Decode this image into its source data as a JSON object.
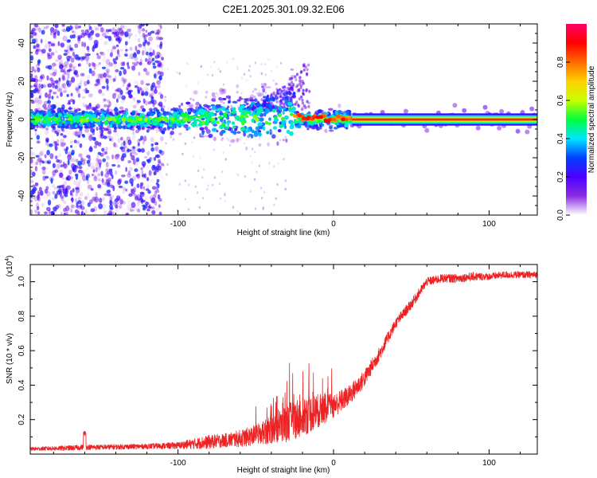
{
  "title": "C2E1.2025.301.09.32.E06",
  "chart_data": [
    {
      "type": "heatmap",
      "title": "C2E1.2025.301.09.32.E06",
      "xlabel": "Height of straight line (km)",
      "ylabel": "Frequency (Hz)",
      "xlim": [
        -195,
        131
      ],
      "ylim": [
        -50,
        50
      ],
      "xticks": [
        -100,
        0,
        100
      ],
      "xtick_labels": [
        "-100",
        "0",
        "100"
      ],
      "yticks": [
        -40,
        -20,
        0,
        20,
        40
      ],
      "ytick_labels": [
        "-40",
        "-20",
        "0",
        "20",
        "40"
      ],
      "colorbar": {
        "label": "Normalized spectral amplitude",
        "range": [
          0,
          1
        ],
        "ticks": [
          0.0,
          0.2,
          0.4,
          0.6,
          0.8
        ],
        "tick_labels": [
          "0.0",
          "0.2",
          "0.4",
          "0.6",
          "0.8"
        ],
        "colors": [
          "#ffffff",
          "#8a2be2",
          "#4b00ff",
          "#0040ff",
          "#00e5ff",
          "#00ff3c",
          "#c8ff00",
          "#ffd000",
          "#ff6a00",
          "#ff0000",
          "#ff0066"
        ]
      },
      "features": {
        "carrier_line_hz": 0,
        "stable_carrier_from_km": 12,
        "noise_region_km": [
          -195,
          -110
        ],
        "widening_region_km": [
          -110,
          -25
        ],
        "upper_flare_max_hz": 33
      }
    },
    {
      "type": "line",
      "xlabel": "Height of straight line (km)",
      "ylabel": "SNR (10 * v/v)",
      "y_scale_label": "(x10",
      "y_scale_exponent": "4",
      "xlim": [
        -195,
        131
      ],
      "ylim": [
        0,
        1.1
      ],
      "xticks": [
        -100,
        0,
        100
      ],
      "xtick_labels": [
        "-100",
        "0",
        "100"
      ],
      "yticks": [
        0.2,
        0.4,
        0.6,
        0.8,
        1.0
      ],
      "ytick_labels": [
        "0.2",
        "0.4",
        "0.6",
        "0.8",
        "1.0"
      ],
      "series": [
        {
          "name": "SNR",
          "color": "#ee2222",
          "x": [
            -195,
            -170,
            -160,
            -150,
            -120,
            -100,
            -90,
            -80,
            -70,
            -60,
            -50,
            -40,
            -30,
            -20,
            -10,
            0,
            10,
            20,
            30,
            40,
            50,
            60,
            70,
            80,
            90,
            100,
            110,
            120,
            131
          ],
          "y": [
            0.03,
            0.035,
            0.04,
            0.04,
            0.045,
            0.05,
            0.06,
            0.07,
            0.08,
            0.09,
            0.11,
            0.14,
            0.18,
            0.22,
            0.25,
            0.28,
            0.34,
            0.44,
            0.59,
            0.76,
            0.87,
            1.0,
            1.02,
            1.02,
            1.03,
            1.03,
            1.04,
            1.04,
            1.04
          ],
          "noise_amplitude": [
            0.01,
            0.015,
            0.015,
            0.015,
            0.015,
            0.02,
            0.03,
            0.04,
            0.04,
            0.05,
            0.06,
            0.08,
            0.11,
            0.12,
            0.1,
            0.07,
            0.06,
            0.05,
            0.04,
            0.03,
            0.03,
            0.025,
            0.025,
            0.025,
            0.025,
            0.02,
            0.02,
            0.02,
            0.02
          ]
        }
      ]
    }
  ]
}
